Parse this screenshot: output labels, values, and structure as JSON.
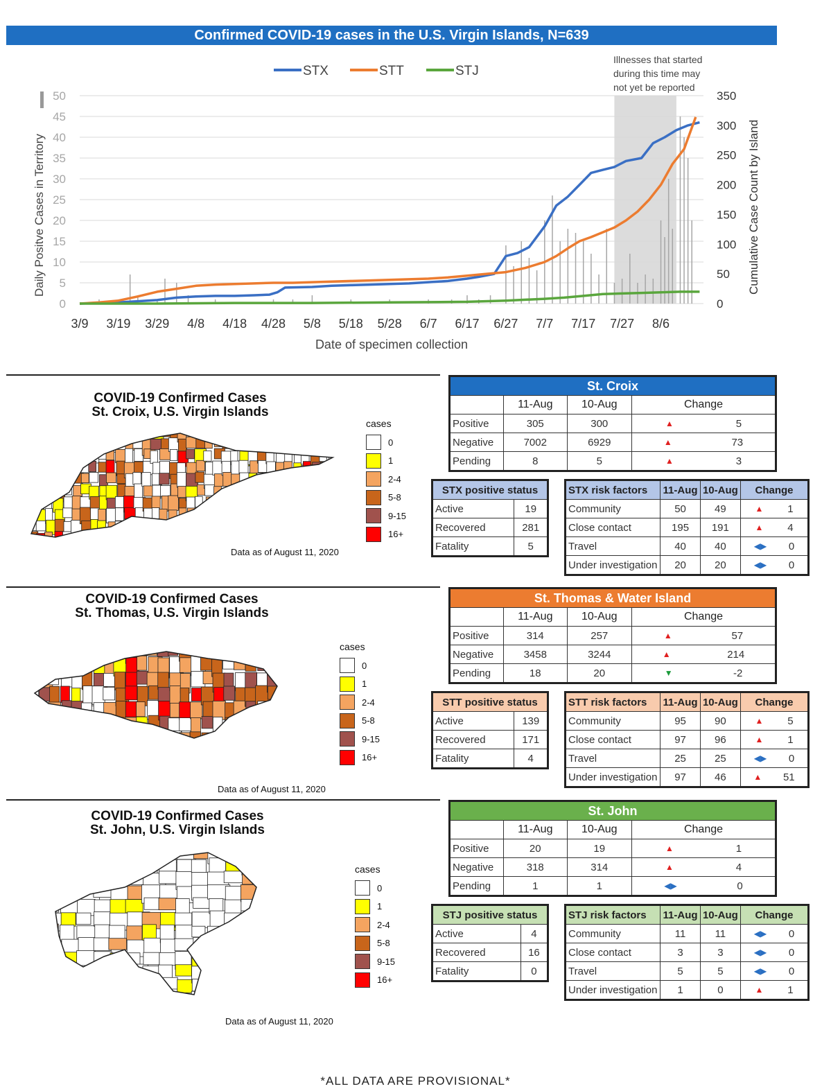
{
  "title": "Confirmed COVID-19 cases in the U.S. Virgin Islands, N=639",
  "chart_data": {
    "type": "line",
    "title": "Confirmed COVID-19 cases in the U.S. Virgin Islands, N=639",
    "xlabel": "Date of specimen collection",
    "ylabel_left": "Daily Positve Cases in Territory",
    "ylabel_right": "Cumulative Case Count by Island",
    "x_ticks": [
      "3/9",
      "3/19",
      "3/29",
      "4/8",
      "4/18",
      "4/28",
      "5/8",
      "5/18",
      "5/28",
      "6/7",
      "6/17",
      "6/27",
      "7/7",
      "7/17",
      "7/27",
      "8/6"
    ],
    "y_left_ticks": [
      0,
      5,
      10,
      15,
      20,
      25,
      30,
      35,
      40,
      45,
      50
    ],
    "y_right_ticks": [
      0,
      50,
      100,
      150,
      200,
      250,
      300,
      350
    ],
    "ylim_left": [
      0,
      50
    ],
    "ylim_right": [
      0,
      350
    ],
    "annotation": [
      "Illnesses that started",
      "during this time may",
      "not yet be reported"
    ],
    "shaded_range_days": [
      138,
      154
    ],
    "series": [
      {
        "name": "STX",
        "color": "#3a6fc4",
        "axis": "right",
        "points": [
          [
            0,
            0
          ],
          [
            5,
            1
          ],
          [
            10,
            2
          ],
          [
            15,
            4
          ],
          [
            20,
            6
          ],
          [
            25,
            10
          ],
          [
            30,
            12
          ],
          [
            35,
            13
          ],
          [
            40,
            13
          ],
          [
            45,
            14
          ],
          [
            49,
            15
          ],
          [
            51,
            19
          ],
          [
            53,
            27
          ],
          [
            60,
            28
          ],
          [
            65,
            30
          ],
          [
            70,
            31
          ],
          [
            75,
            32
          ],
          [
            80,
            33
          ],
          [
            85,
            34
          ],
          [
            90,
            36
          ],
          [
            95,
            38
          ],
          [
            100,
            42
          ],
          [
            103,
            45
          ],
          [
            107,
            50
          ],
          [
            110,
            80
          ],
          [
            113,
            85
          ],
          [
            116,
            95
          ],
          [
            120,
            130
          ],
          [
            123,
            165
          ],
          [
            126,
            180
          ],
          [
            129,
            200
          ],
          [
            132,
            220
          ],
          [
            135,
            225
          ],
          [
            138,
            230
          ],
          [
            141,
            240
          ],
          [
            145,
            245
          ],
          [
            148,
            270
          ],
          [
            151,
            280
          ],
          [
            154,
            292
          ],
          [
            157,
            300
          ],
          [
            160,
            305
          ]
        ]
      },
      {
        "name": "STT",
        "color": "#ec7c30",
        "axis": "right",
        "points": [
          [
            0,
            0
          ],
          [
            5,
            2
          ],
          [
            10,
            5
          ],
          [
            15,
            12
          ],
          [
            20,
            20
          ],
          [
            25,
            25
          ],
          [
            30,
            30
          ],
          [
            35,
            32
          ],
          [
            40,
            33
          ],
          [
            45,
            34
          ],
          [
            50,
            35
          ],
          [
            55,
            35
          ],
          [
            60,
            36
          ],
          [
            65,
            37
          ],
          [
            70,
            38
          ],
          [
            75,
            39
          ],
          [
            80,
            40
          ],
          [
            85,
            41
          ],
          [
            90,
            42
          ],
          [
            95,
            44
          ],
          [
            100,
            47
          ],
          [
            105,
            50
          ],
          [
            110,
            53
          ],
          [
            115,
            60
          ],
          [
            120,
            70
          ],
          [
            123,
            80
          ],
          [
            126,
            93
          ],
          [
            129,
            105
          ],
          [
            132,
            112
          ],
          [
            135,
            120
          ],
          [
            138,
            128
          ],
          [
            141,
            140
          ],
          [
            144,
            155
          ],
          [
            147,
            175
          ],
          [
            150,
            200
          ],
          [
            153,
            235
          ],
          [
            156,
            260
          ],
          [
            159,
            314
          ]
        ]
      },
      {
        "name": "STJ",
        "color": "#5aa63d",
        "axis": "right",
        "points": [
          [
            0,
            0
          ],
          [
            20,
            0
          ],
          [
            40,
            1
          ],
          [
            60,
            1
          ],
          [
            80,
            2
          ],
          [
            100,
            3
          ],
          [
            110,
            5
          ],
          [
            120,
            8
          ],
          [
            125,
            10
          ],
          [
            130,
            13
          ],
          [
            135,
            16
          ],
          [
            140,
            17
          ],
          [
            145,
            18
          ],
          [
            150,
            19
          ],
          [
            155,
            20
          ],
          [
            160,
            20
          ]
        ]
      }
    ],
    "daily_bars": [
      [
        0,
        0
      ],
      [
        5,
        1
      ],
      [
        10,
        1
      ],
      [
        13,
        7
      ],
      [
        15,
        2
      ],
      [
        20,
        1
      ],
      [
        22,
        6
      ],
      [
        25,
        5
      ],
      [
        28,
        2
      ],
      [
        35,
        1
      ],
      [
        50,
        1
      ],
      [
        55,
        1
      ],
      [
        60,
        2
      ],
      [
        70,
        1
      ],
      [
        80,
        1
      ],
      [
        90,
        1
      ],
      [
        96,
        1
      ],
      [
        100,
        2
      ],
      [
        103,
        1
      ],
      [
        106,
        2
      ],
      [
        110,
        14
      ],
      [
        112,
        9
      ],
      [
        114,
        15
      ],
      [
        116,
        11
      ],
      [
        118,
        8
      ],
      [
        120,
        20
      ],
      [
        122,
        26
      ],
      [
        124,
        15
      ],
      [
        126,
        18
      ],
      [
        128,
        17
      ],
      [
        130,
        15
      ],
      [
        132,
        12
      ],
      [
        134,
        7
      ],
      [
        136,
        18
      ],
      [
        138,
        5
      ],
      [
        140,
        6
      ],
      [
        142,
        12
      ],
      [
        144,
        5
      ],
      [
        146,
        7
      ],
      [
        148,
        6
      ],
      [
        150,
        20
      ],
      [
        151,
        16
      ],
      [
        152,
        30
      ],
      [
        153,
        18
      ],
      [
        155,
        45
      ],
      [
        156,
        40
      ],
      [
        157,
        35
      ],
      [
        158,
        20
      ]
    ]
  },
  "stx": {
    "map_title_1": "COVID-19 Confirmed Cases",
    "map_title_2": "St. Croix, U.S. Virgin Islands",
    "asof": "Data as of August 11, 2020",
    "legend_title": "cases",
    "legend": [
      "0",
      "1",
      "2-4",
      "5-8",
      "9-15",
      "16+"
    ],
    "header": "St. Croix",
    "cols": [
      "11-Aug",
      "10-Aug",
      "Change"
    ],
    "rows": [
      {
        "label": "Positive",
        "a": "305",
        "b": "300",
        "chg": "5",
        "dir": "up"
      },
      {
        "label": "Negative",
        "a": "7002",
        "b": "6929",
        "chg": "73",
        "dir": "up"
      },
      {
        "label": "Pending",
        "a": "8",
        "b": "5",
        "chg": "3",
        "dir": "up"
      }
    ],
    "status_title": "STX positive status",
    "status": [
      {
        "label": "Active",
        "v": "19"
      },
      {
        "label": "Recovered",
        "v": "281"
      },
      {
        "label": "Fatality",
        "v": "5"
      }
    ],
    "risk_title": "STX risk factors",
    "risk_cols": [
      "11-Aug",
      "10-Aug",
      "Change"
    ],
    "risk": [
      {
        "label": "Community",
        "a": "50",
        "b": "49",
        "chg": "1",
        "dir": "up"
      },
      {
        "label": "Close contact",
        "a": "195",
        "b": "191",
        "chg": "4",
        "dir": "up"
      },
      {
        "label": "Travel",
        "a": "40",
        "b": "40",
        "chg": "0",
        "dir": "flat"
      },
      {
        "label": "Under investigation",
        "a": "20",
        "b": "20",
        "chg": "0",
        "dir": "flat"
      }
    ]
  },
  "stt": {
    "map_title_1": "COVID-19 Confirmed Cases",
    "map_title_2": "St. Thomas, U.S. Virgin Islands",
    "asof": "Data as of August 11, 2020",
    "legend_title": "cases",
    "legend": [
      "0",
      "1",
      "2-4",
      "5-8",
      "9-15",
      "16+"
    ],
    "header": "St. Thomas & Water Island",
    "cols": [
      "11-Aug",
      "10-Aug",
      "Change"
    ],
    "rows": [
      {
        "label": "Positive",
        "a": "314",
        "b": "257",
        "chg": "57",
        "dir": "up"
      },
      {
        "label": "Negative",
        "a": "3458",
        "b": "3244",
        "chg": "214",
        "dir": "up"
      },
      {
        "label": "Pending",
        "a": "18",
        "b": "20",
        "chg": "-2",
        "dir": "down"
      }
    ],
    "status_title": "STT positive status",
    "status": [
      {
        "label": "Active",
        "v": "139"
      },
      {
        "label": "Recovered",
        "v": "171"
      },
      {
        "label": "Fatality",
        "v": "4"
      }
    ],
    "risk_title": "STT risk factors",
    "risk_cols": [
      "11-Aug",
      "10-Aug",
      "Change"
    ],
    "risk": [
      {
        "label": "Community",
        "a": "95",
        "b": "90",
        "chg": "5",
        "dir": "up"
      },
      {
        "label": "Close contact",
        "a": "97",
        "b": "96",
        "chg": "1",
        "dir": "up"
      },
      {
        "label": "Travel",
        "a": "25",
        "b": "25",
        "chg": "0",
        "dir": "flat"
      },
      {
        "label": "Under investigation",
        "a": "97",
        "b": "46",
        "chg": "51",
        "dir": "up"
      }
    ]
  },
  "stj": {
    "map_title_1": "COVID-19 Confirmed Cases",
    "map_title_2": "St. John, U.S. Virgin Islands",
    "asof": "Data as of August 11, 2020",
    "legend_title": "cases",
    "legend": [
      "0",
      "1",
      "2-4",
      "5-8",
      "9-15",
      "16+"
    ],
    "header": "St. John",
    "cols": [
      "11-Aug",
      "10-Aug",
      "Change"
    ],
    "rows": [
      {
        "label": "Positive",
        "a": "20",
        "b": "19",
        "chg": "1",
        "dir": "up"
      },
      {
        "label": "Negative",
        "a": "318",
        "b": "314",
        "chg": "4",
        "dir": "up"
      },
      {
        "label": "Pending",
        "a": "1",
        "b": "1",
        "chg": "0",
        "dir": "flat"
      }
    ],
    "status_title": "STJ positive status",
    "status": [
      {
        "label": "Active",
        "v": "4"
      },
      {
        "label": "Recovered",
        "v": "16"
      },
      {
        "label": "Fatality",
        "v": "0"
      }
    ],
    "risk_title": "STJ risk factors",
    "risk_cols": [
      "11-Aug",
      "10-Aug",
      "Change"
    ],
    "risk": [
      {
        "label": "Community",
        "a": "11",
        "b": "11",
        "chg": "0",
        "dir": "flat"
      },
      {
        "label": "Close contact",
        "a": "3",
        "b": "3",
        "chg": "0",
        "dir": "flat"
      },
      {
        "label": "Travel",
        "a": "5",
        "b": "5",
        "chg": "0",
        "dir": "flat"
      },
      {
        "label": "Under investigation",
        "a": "1",
        "b": "0",
        "chg": "1",
        "dir": "up"
      }
    ]
  },
  "legend_colors": [
    "#ffffff",
    "#ffff00",
    "#f4a460",
    "#c8651b",
    "#a0524d",
    "#ff0000"
  ],
  "header_colors": {
    "stx": "#1f6fc2",
    "stt": "#ec7c30",
    "stj": "#6ab04c"
  },
  "sub_colors": {
    "stx": "#b4c6e7",
    "stt": "#f8cbad",
    "stj": "#c6e0b4"
  },
  "footer": "*ALL DATA ARE PROVISIONAL*"
}
